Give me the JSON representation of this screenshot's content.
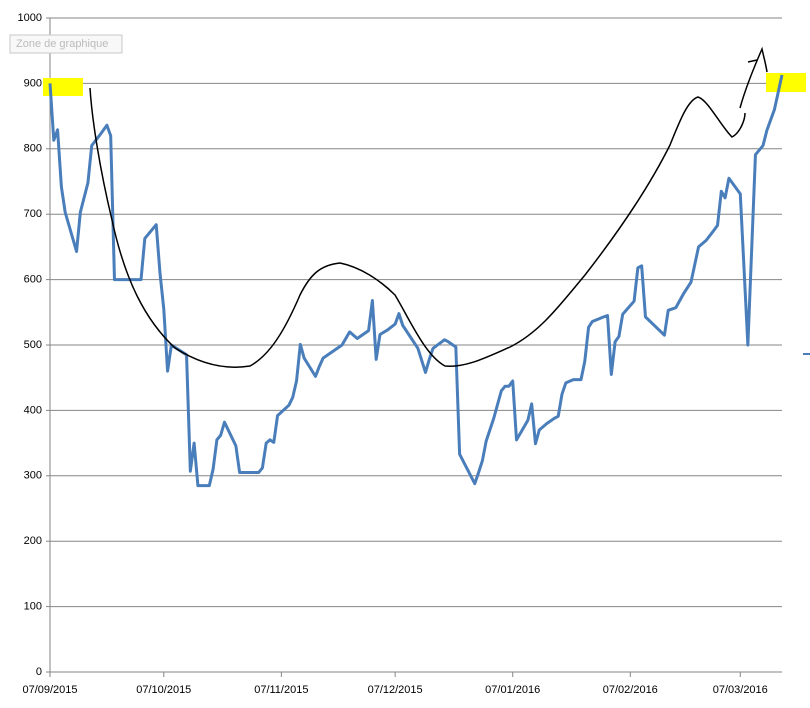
{
  "chart_data": {
    "type": "line",
    "x": [
      "2015-09-07",
      "2015-09-08",
      "2015-09-09",
      "2015-09-10",
      "2015-09-11",
      "2015-09-14",
      "2015-09-15",
      "2015-09-17",
      "2015-09-18",
      "2015-09-20",
      "2015-09-22",
      "2015-09-23",
      "2015-09-24",
      "2015-09-27",
      "2015-10-01",
      "2015-10-02",
      "2015-10-05",
      "2015-10-06",
      "2015-10-07",
      "2015-10-08",
      "2015-10-09",
      "2015-10-13",
      "2015-10-14",
      "2015-10-15",
      "2015-10-16",
      "2015-10-19",
      "2015-10-20",
      "2015-10-21",
      "2015-10-22",
      "2015-10-23",
      "2015-10-26",
      "2015-10-27",
      "2015-11-01",
      "2015-11-02",
      "2015-11-03",
      "2015-11-04",
      "2015-11-05",
      "2015-11-06",
      "2015-11-09",
      "2015-11-10",
      "2015-11-11",
      "2015-11-12",
      "2015-11-13",
      "2015-11-16",
      "2015-11-17",
      "2015-11-18",
      "2015-11-21",
      "2015-11-23",
      "2015-11-25",
      "2015-11-27",
      "2015-11-30",
      "2015-12-01",
      "2015-12-02",
      "2015-12-03",
      "2015-12-05",
      "2015-12-07",
      "2015-12-08",
      "2015-12-09",
      "2015-12-13",
      "2015-12-15",
      "2015-12-16",
      "2015-12-17",
      "2015-12-20",
      "2015-12-21",
      "2015-12-23",
      "2015-12-24",
      "2015-12-28",
      "2015-12-29",
      "2015-12-30",
      "2015-12-31",
      "2016-01-02",
      "2016-01-04",
      "2016-01-05",
      "2016-01-06",
      "2016-01-07",
      "2016-01-08",
      "2016-01-11",
      "2016-01-12",
      "2016-01-13",
      "2016-01-14",
      "2016-01-16",
      "2016-01-18",
      "2016-01-19",
      "2016-01-20",
      "2016-01-21",
      "2016-01-23",
      "2016-01-25",
      "2016-01-26",
      "2016-01-27",
      "2016-01-28",
      "2016-01-31",
      "2016-02-01",
      "2016-02-02",
      "2016-02-03",
      "2016-02-04",
      "2016-02-05",
      "2016-02-08",
      "2016-02-09",
      "2016-02-10",
      "2016-02-11",
      "2016-02-16",
      "2016-02-17",
      "2016-02-19",
      "2016-02-21",
      "2016-02-23",
      "2016-02-25",
      "2016-02-27",
      "2016-02-29",
      "2016-03-01",
      "2016-03-02",
      "2016-03-03",
      "2016-03-04",
      "2016-03-07",
      "2016-03-09",
      "2016-03-11",
      "2016-03-13",
      "2016-03-14",
      "2016-03-16",
      "2016-03-18"
    ],
    "series": [
      {
        "color": "#4a7ebb",
        "values": [
          900,
          813,
          829,
          742,
          703,
          643,
          703,
          748,
          805,
          820,
          836,
          820,
          600,
          600,
          600,
          663,
          684,
          610,
          555,
          460,
          500,
          485,
          307,
          350,
          285,
          285,
          310,
          355,
          362,
          382,
          346,
          305,
          305,
          312,
          350,
          355,
          351,
          392,
          408,
          420,
          445,
          501,
          480,
          452,
          467,
          480,
          492,
          500,
          520,
          510,
          522,
          568,
          478,
          516,
          523,
          532,
          548,
          530,
          495,
          458,
          478,
          495,
          508,
          505,
          497,
          333,
          288,
          305,
          323,
          353,
          388,
          430,
          437,
          437,
          445,
          355,
          385,
          410,
          349,
          370,
          380,
          388,
          391,
          425,
          442,
          447,
          447,
          475,
          527,
          536,
          543,
          545,
          455,
          505,
          513,
          547,
          567,
          618,
          621,
          543,
          515,
          553,
          557,
          578,
          596,
          650,
          660,
          675,
          683,
          735,
          725,
          755,
          731,
          500,
          791,
          805,
          828,
          860,
          913
        ]
      }
    ],
    "xlim": [
      "2015-09-07",
      "2016-03-18"
    ],
    "xticks": [
      {
        "value": "2015-09-07",
        "label": "07/09/2015"
      },
      {
        "value": "2015-10-07",
        "label": "07/10/2015"
      },
      {
        "value": "2015-11-07",
        "label": "07/11/2015"
      },
      {
        "value": "2015-12-07",
        "label": "07/12/2015"
      },
      {
        "value": "2016-01-07",
        "label": "07/01/2016"
      },
      {
        "value": "2016-02-07",
        "label": "07/02/2016"
      },
      {
        "value": "2016-03-07",
        "label": "07/03/2016"
      }
    ],
    "ylim": [
      0,
      1000
    ],
    "yticks": [
      0,
      100,
      200,
      300,
      400,
      500,
      600,
      700,
      800,
      900,
      1000
    ],
    "grid": true
  },
  "tooltip": "Zone de graphique"
}
